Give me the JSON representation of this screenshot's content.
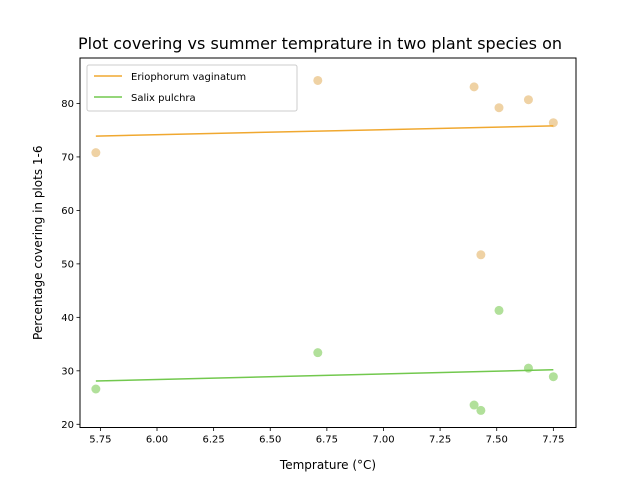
{
  "chart_data": {
    "type": "scatter",
    "title": "Plot covering vs summer temprature in two plant species on",
    "xlabel": "Temprature (°C)",
    "ylabel": "Percentage covering in plots 1-6",
    "xlim": [
      5.66,
      7.85
    ],
    "ylim": [
      19.4,
      88.5
    ],
    "xticks": [
      5.75,
      6.0,
      6.25,
      6.5,
      6.75,
      7.0,
      7.25,
      7.5,
      7.75
    ],
    "xtick_labels": [
      "5.75",
      "6.00",
      "6.25",
      "6.50",
      "6.75",
      "7.00",
      "7.25",
      "7.50",
      "7.75"
    ],
    "yticks": [
      20,
      30,
      40,
      50,
      60,
      70,
      80
    ],
    "ytick_labels": [
      "20",
      "30",
      "40",
      "50",
      "60",
      "70",
      "80"
    ],
    "grid": false,
    "legend_position": "top-left",
    "series": [
      {
        "name": "Eriophorum vaginatum",
        "color": "#f0a830",
        "point_color": "#efd2a4",
        "points": [
          {
            "x": 5.73,
            "y": 70.8
          },
          {
            "x": 6.71,
            "y": 84.3
          },
          {
            "x": 7.4,
            "y": 83.1
          },
          {
            "x": 7.43,
            "y": 51.7
          },
          {
            "x": 7.51,
            "y": 79.2
          },
          {
            "x": 7.64,
            "y": 80.7
          },
          {
            "x": 7.75,
            "y": 76.4
          }
        ],
        "trend": {
          "x": [
            5.73,
            7.75
          ],
          "y": [
            73.9,
            75.8
          ]
        }
      },
      {
        "name": "Salix pulchra",
        "color": "#72c84e",
        "point_color": "#b1e09a",
        "points": [
          {
            "x": 5.73,
            "y": 26.6
          },
          {
            "x": 6.71,
            "y": 33.4
          },
          {
            "x": 7.4,
            "y": 23.6
          },
          {
            "x": 7.43,
            "y": 22.6
          },
          {
            "x": 7.51,
            "y": 41.3
          },
          {
            "x": 7.64,
            "y": 30.5
          },
          {
            "x": 7.75,
            "y": 28.9
          }
        ],
        "trend": {
          "x": [
            5.73,
            7.75
          ],
          "y": [
            28.1,
            30.2
          ]
        }
      }
    ]
  }
}
